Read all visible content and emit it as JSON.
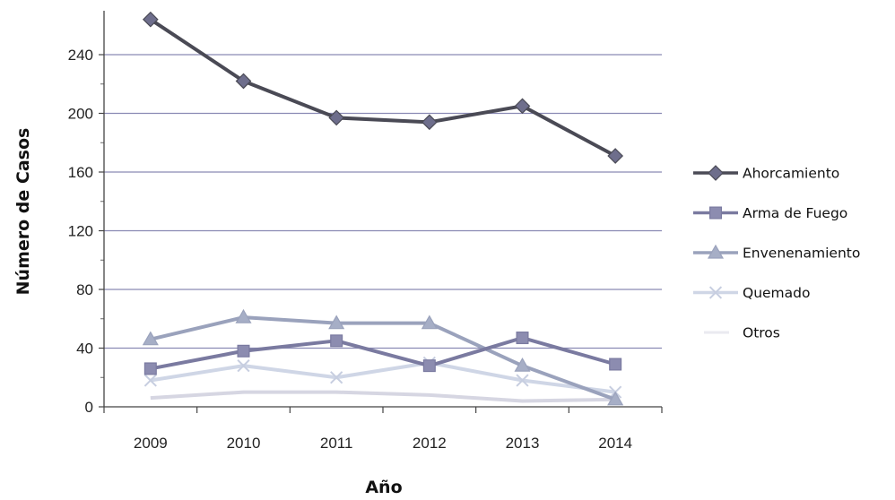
{
  "chart_data": {
    "type": "line",
    "title": "",
    "xlabel": "Año",
    "ylabel": "Número de Casos",
    "ylim": [
      0,
      270
    ],
    "yticks": [
      0,
      40,
      80,
      120,
      160,
      200,
      240
    ],
    "grid": true,
    "legend_position": "right",
    "categories": [
      "2009",
      "2010",
      "2011",
      "2012",
      "2013",
      "2014"
    ],
    "series": [
      {
        "name": "Ahorcamiento",
        "marker": "diamond",
        "color": "#6e6e8c",
        "line_color": "#4a4a55",
        "values": [
          264,
          222,
          197,
          194,
          205,
          171
        ]
      },
      {
        "name": "Arma de Fuego",
        "marker": "square",
        "color": "#8c8cb0",
        "line_color": "#7a7aa0",
        "values": [
          26,
          38,
          45,
          28,
          47,
          29
        ]
      },
      {
        "name": "Envenenamiento",
        "marker": "triangle",
        "color": "#a6aec6",
        "line_color": "#9aa2bc",
        "values": [
          46,
          61,
          57,
          57,
          28,
          5
        ]
      },
      {
        "name": "Quemado",
        "marker": "x",
        "color": "#c7cee0",
        "line_color": "#cfd6e6",
        "values": [
          18,
          28,
          20,
          30,
          18,
          10
        ]
      },
      {
        "name": "Otros",
        "marker": "none",
        "color": "#d4d4e0",
        "line_color": "#d6d6e2",
        "values": [
          6,
          10,
          10,
          8,
          4,
          5
        ]
      }
    ]
  }
}
